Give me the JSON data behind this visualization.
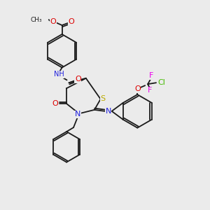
{
  "bg_color": "#ebebeb",
  "bond_color": "#1a1a1a",
  "colors": {
    "N": "#2020dd",
    "O": "#dd0000",
    "S": "#bbaa00",
    "F": "#ee00ee",
    "Cl": "#44bb00",
    "H": "#557777",
    "C": "#1a1a1a"
  },
  "font_size": 7.0
}
